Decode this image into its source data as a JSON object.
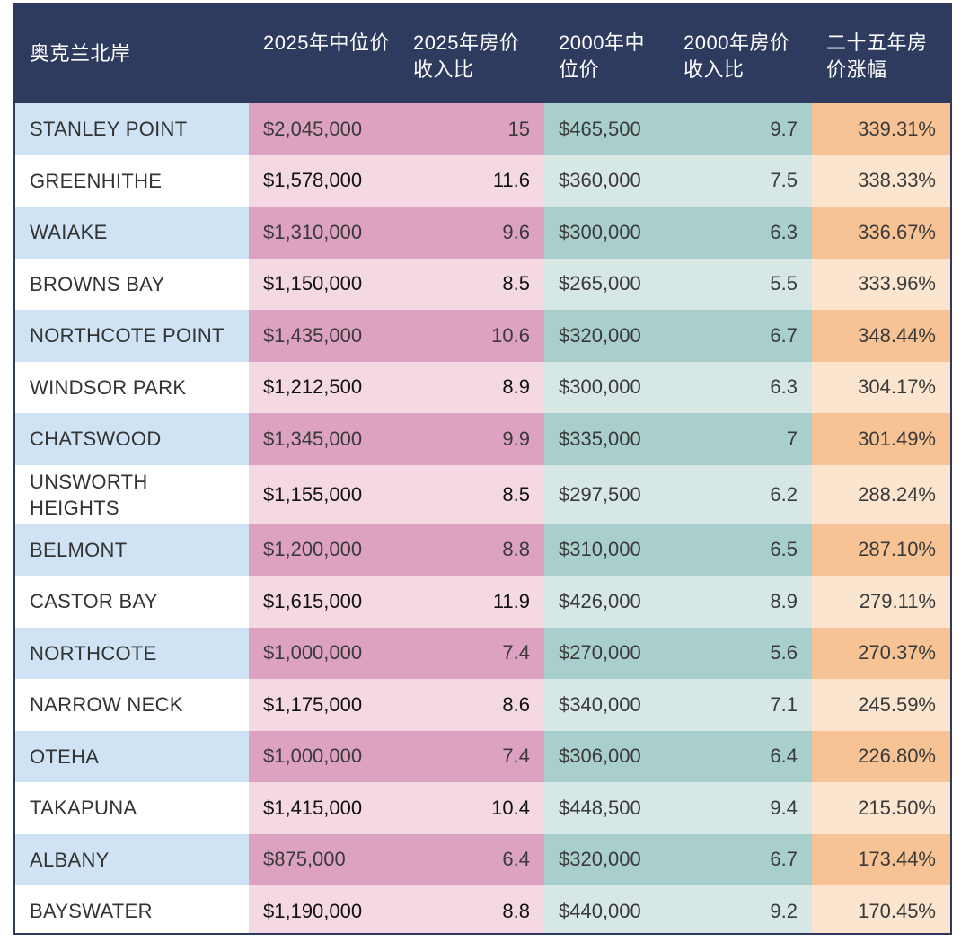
{
  "chart_data": {
    "type": "table",
    "columns": [
      "奥克兰北岸",
      "2025年中位价",
      "2025年房价收入比",
      "2000年中位价",
      "2000年房价收入比",
      "二十五年房价涨幅"
    ],
    "rows": [
      [
        "STANLEY POINT",
        "$2,045,000",
        "15",
        "$465,500",
        "9.7",
        "339.31%"
      ],
      [
        "GREENHITHE",
        "$1,578,000",
        "11.6",
        "$360,000",
        "7.5",
        "338.33%"
      ],
      [
        "WAIAKE",
        "$1,310,000",
        "9.6",
        "$300,000",
        "6.3",
        "336.67%"
      ],
      [
        "BROWNS BAY",
        "$1,150,000",
        "8.5",
        "$265,000",
        "5.5",
        "333.96%"
      ],
      [
        "NORTHCOTE POINT",
        "$1,435,000",
        "10.6",
        "$320,000",
        "6.7",
        "348.44%"
      ],
      [
        "WINDSOR PARK",
        "$1,212,500",
        "8.9",
        "$300,000",
        "6.3",
        "304.17%"
      ],
      [
        "CHATSWOOD",
        "$1,345,000",
        "9.9",
        "$335,000",
        "7",
        "301.49%"
      ],
      [
        "UNSWORTH HEIGHTS",
        "$1,155,000",
        "8.5",
        "$297,500",
        "6.2",
        "288.24%"
      ],
      [
        "BELMONT",
        "$1,200,000",
        "8.8",
        "$310,000",
        "6.5",
        "287.10%"
      ],
      [
        "CASTOR BAY",
        "$1,615,000",
        "11.9",
        "$426,000",
        "8.9",
        "279.11%"
      ],
      [
        "NORTHCOTE",
        "$1,000,000",
        "7.4",
        "$270,000",
        "5.6",
        "270.37%"
      ],
      [
        "NARROW NECK",
        "$1,175,000",
        "8.6",
        "$340,000",
        "7.1",
        "245.59%"
      ],
      [
        "OTEHA",
        "$1,000,000",
        "7.4",
        "$306,000",
        "6.4",
        "226.80%"
      ],
      [
        "TAKAPUNA",
        "$1,415,000",
        "10.4",
        "$448,500",
        "9.4",
        "215.50%"
      ],
      [
        "ALBANY",
        "$875,000",
        "6.4",
        "$320,000",
        "6.7",
        "173.44%"
      ],
      [
        "BAYSWATER",
        "$1,190,000",
        "8.8",
        "$440,000",
        "9.2",
        "170.45%"
      ]
    ]
  },
  "colors": {
    "header_bg": "#2f3a5f",
    "area_tint": "#cfe3f4",
    "price2025_tint": "#dca2bf",
    "price2025_light": "#f4d9e4",
    "price2000_tint": "#a9cfcd",
    "price2000_light": "#d6e7e6",
    "growth_tint": "#f7c394",
    "growth_light": "#fbe5cf"
  }
}
